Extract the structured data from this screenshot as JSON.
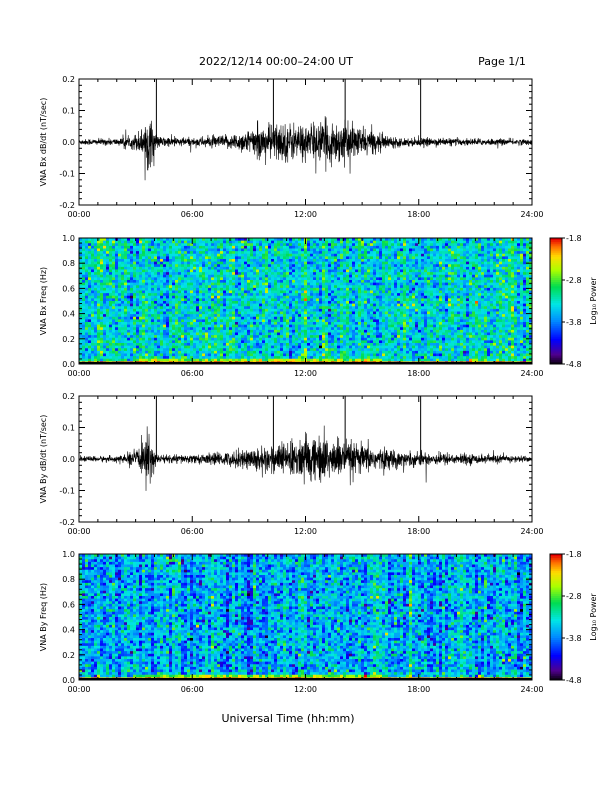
{
  "header": {
    "title": "2022/12/14  00:00–24:00 UT",
    "page": "Page 1/1"
  },
  "footer": {
    "xlabel": "Universal Time (hh:mm)"
  },
  "chart_data": [
    {
      "type": "line",
      "id": "bx-line",
      "ylabel": "VNA Bx dB/dt (nT/sec)",
      "ylim": [
        -0.2,
        0.2
      ],
      "xlim_hours": [
        0,
        24
      ],
      "x_ticks": [
        "00:00",
        "06:00",
        "12:00",
        "18:00",
        "24:00"
      ],
      "y_ticks": [
        "0.2",
        "0.1",
        "0.0",
        "-0.1",
        "-0.2"
      ],
      "grid": false,
      "spikes": [
        {
          "hour": 4.1,
          "value": 0.2
        },
        {
          "hour": 10.3,
          "value": 0.2
        },
        {
          "hour": 14.1,
          "value": 0.2
        },
        {
          "hour": 18.1,
          "value": 0.2
        }
      ],
      "envelope": [
        {
          "hour": 0,
          "amp": 0.008
        },
        {
          "hour": 2.3,
          "amp": 0.01
        },
        {
          "hour": 2.4,
          "amp": 0.025
        },
        {
          "hour": 2.6,
          "amp": 0.01
        },
        {
          "hour": 3.4,
          "amp": 0.04
        },
        {
          "hour": 3.6,
          "amp": 0.09
        },
        {
          "hour": 3.9,
          "amp": 0.05
        },
        {
          "hour": 4.2,
          "amp": 0.015
        },
        {
          "hour": 6.0,
          "amp": 0.012
        },
        {
          "hour": 8.0,
          "amp": 0.02
        },
        {
          "hour": 9.0,
          "amp": 0.035
        },
        {
          "hour": 10.5,
          "amp": 0.055
        },
        {
          "hour": 12.0,
          "amp": 0.05
        },
        {
          "hour": 13.5,
          "amp": 0.06
        },
        {
          "hour": 15.0,
          "amp": 0.04
        },
        {
          "hour": 16.2,
          "amp": 0.02
        },
        {
          "hour": 17.0,
          "amp": 0.012
        },
        {
          "hour": 20.0,
          "amp": 0.01
        },
        {
          "hour": 24.0,
          "amp": 0.008
        }
      ]
    },
    {
      "type": "heatmap",
      "id": "bx-spec",
      "ylabel": "VNA Bx Freq (Hz)",
      "ylim": [
        0.0,
        1.0
      ],
      "xlim_hours": [
        0,
        24
      ],
      "x_ticks": [
        "00:00",
        "06:00",
        "12:00",
        "18:00",
        "24:00"
      ],
      "y_ticks": [
        "1.0",
        "0.8",
        "0.6",
        "0.4",
        "0.2",
        "0.0"
      ],
      "colorbar": {
        "label": "Log₁₀ Power",
        "min": -4.8,
        "max": -1.8,
        "tick_labels": [
          "-1.8",
          "-2.8",
          "-3.8",
          "-4.8"
        ]
      },
      "base_level": -3.35,
      "low_freq_band": {
        "freq_max": 0.05,
        "level": -2.6,
        "hours": [
          3,
          16
        ]
      }
    },
    {
      "type": "line",
      "id": "by-line",
      "ylabel": "VNA By dB/dt (nT/sec)",
      "ylim": [
        -0.2,
        0.2
      ],
      "xlim_hours": [
        0,
        24
      ],
      "x_ticks": [
        "00:00",
        "06:00",
        "12:00",
        "18:00",
        "24:00"
      ],
      "y_ticks": [
        "0.2",
        "0.1",
        "0.0",
        "-0.1",
        "-0.2"
      ],
      "grid": false,
      "spikes": [
        {
          "hour": 4.1,
          "value": 0.2
        },
        {
          "hour": 10.3,
          "value": 0.2
        },
        {
          "hour": 14.1,
          "value": 0.2
        },
        {
          "hour": 18.1,
          "value": 0.2
        }
      ],
      "envelope": [
        {
          "hour": 0,
          "amp": 0.007
        },
        {
          "hour": 2.3,
          "amp": 0.009
        },
        {
          "hour": 3.4,
          "amp": 0.035
        },
        {
          "hour": 3.6,
          "amp": 0.08
        },
        {
          "hour": 3.9,
          "amp": 0.04
        },
        {
          "hour": 4.2,
          "amp": 0.012
        },
        {
          "hour": 6.0,
          "amp": 0.012
        },
        {
          "hour": 8.0,
          "amp": 0.02
        },
        {
          "hour": 9.5,
          "amp": 0.035
        },
        {
          "hour": 11.0,
          "amp": 0.045
        },
        {
          "hour": 12.5,
          "amp": 0.07
        },
        {
          "hour": 14.0,
          "amp": 0.05
        },
        {
          "hour": 16.0,
          "amp": 0.03
        },
        {
          "hour": 17.5,
          "amp": 0.02
        },
        {
          "hour": 20.0,
          "amp": 0.015
        },
        {
          "hour": 24.0,
          "amp": 0.008
        }
      ]
    },
    {
      "type": "heatmap",
      "id": "by-spec",
      "ylabel": "VNA By Freq (Hz)",
      "ylim": [
        0.0,
        1.0
      ],
      "xlim_hours": [
        0,
        24
      ],
      "x_ticks": [
        "00:00",
        "06:00",
        "12:00",
        "18:00",
        "24:00"
      ],
      "y_ticks": [
        "1.0",
        "0.8",
        "0.6",
        "0.4",
        "0.2",
        "0.0"
      ],
      "colorbar": {
        "label": "Log₁₀ Power",
        "min": -4.8,
        "max": -1.8,
        "tick_labels": [
          "-1.8",
          "-2.8",
          "-3.8",
          "-4.8"
        ]
      },
      "base_level": -3.6,
      "low_freq_band": {
        "freq_max": 0.05,
        "level": -2.7,
        "hours": [
          3,
          16
        ]
      }
    }
  ]
}
